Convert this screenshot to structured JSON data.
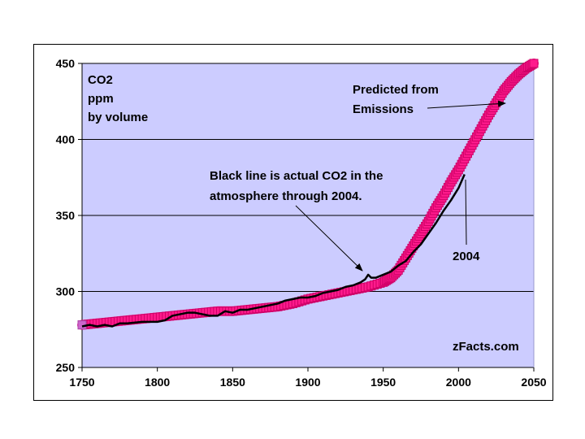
{
  "chart_data": {
    "type": "line",
    "title": "",
    "xlabel": "",
    "ylabel": "CO2 ppm by volume",
    "ylabel_lines": [
      "CO2",
      "ppm",
      "by volume"
    ],
    "xlim": [
      1750,
      2050
    ],
    "ylim": [
      250,
      450
    ],
    "x_ticks": [
      1750,
      1800,
      1850,
      1900,
      1950,
      2000,
      2050
    ],
    "y_ticks": [
      250,
      300,
      350,
      400,
      450
    ],
    "grid": true,
    "series": [
      {
        "name": "Predicted from Emissions",
        "color": "#ff1a8c",
        "edge_color": "#cc0066",
        "x": [
          1750,
          1760,
          1770,
          1780,
          1790,
          1800,
          1810,
          1820,
          1830,
          1840,
          1850,
          1860,
          1870,
          1880,
          1890,
          1900,
          1910,
          1920,
          1930,
          1940,
          1950,
          1955,
          1960,
          1965,
          1970,
          1975,
          1980,
          1985,
          1990,
          1995,
          2000,
          2005,
          2010,
          2015,
          2020,
          2025,
          2030,
          2035,
          2040,
          2045,
          2050
        ],
        "values": [
          278,
          279,
          280,
          281,
          282,
          283,
          284,
          285,
          286,
          287,
          287,
          288,
          289,
          290,
          292,
          295,
          297,
          299,
          301,
          303,
          306,
          309,
          314,
          322,
          330,
          338,
          346,
          355,
          363,
          372,
          380,
          389,
          398,
          407,
          416,
          424,
          432,
          438,
          443,
          447,
          450
        ]
      },
      {
        "name": "Actual CO2 (through 2004)",
        "color": "#000000",
        "x": [
          1750,
          1755,
          1760,
          1765,
          1770,
          1775,
          1780,
          1790,
          1800,
          1805,
          1810,
          1815,
          1820,
          1825,
          1830,
          1835,
          1840,
          1845,
          1850,
          1855,
          1860,
          1865,
          1870,
          1875,
          1880,
          1885,
          1890,
          1895,
          1900,
          1905,
          1910,
          1915,
          1920,
          1925,
          1930,
          1935,
          1938,
          1940,
          1942,
          1945,
          1950,
          1955,
          1960,
          1965,
          1970,
          1975,
          1980,
          1985,
          1990,
          1995,
          2000,
          2004
        ],
        "values": [
          277,
          278,
          277,
          278,
          277,
          279,
          279,
          280,
          280,
          281,
          284,
          285,
          286,
          286,
          285,
          284,
          284,
          287,
          286,
          288,
          288,
          289,
          290,
          291,
          292,
          294,
          295,
          296,
          296,
          297,
          299,
          300,
          301,
          303,
          304,
          306,
          308,
          311,
          309,
          309,
          311,
          313,
          317,
          320,
          326,
          331,
          338,
          345,
          353,
          360,
          368,
          377
        ]
      }
    ],
    "annotations": [
      {
        "id": "predicted",
        "lines": [
          "Predicted from",
          "Emissions"
        ]
      },
      {
        "id": "actual",
        "lines": [
          "Black line is actual CO2 in the",
          "atmosphere through 2004."
        ]
      },
      {
        "id": "year",
        "lines": [
          "2004"
        ]
      },
      {
        "id": "source",
        "lines": [
          "zFacts.com"
        ]
      }
    ],
    "colors": {
      "plot_background": "#ccccff",
      "frame_background": "#ffffff",
      "gridline": "#000000"
    }
  }
}
